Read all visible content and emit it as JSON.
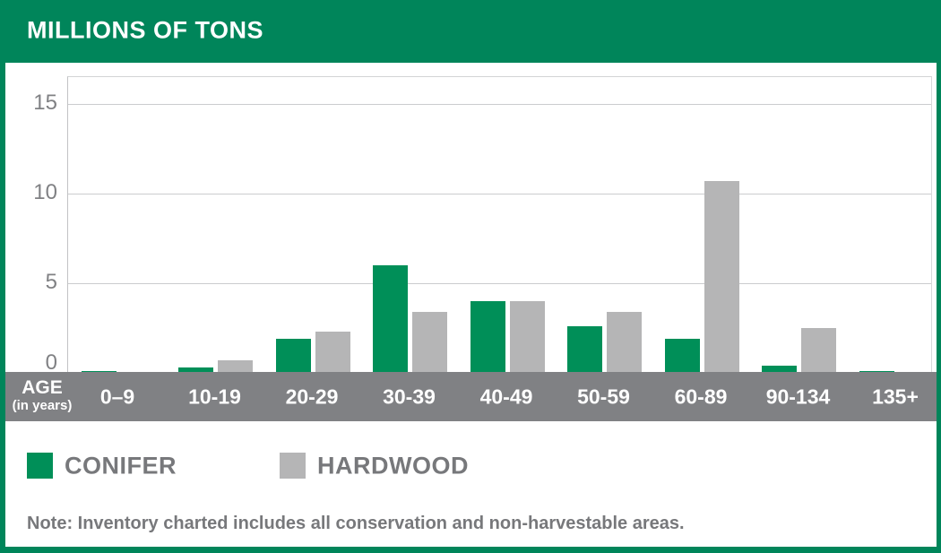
{
  "header": {
    "title": "MILLIONS OF TONS"
  },
  "colors": {
    "frame_green": "#00855A",
    "conifer_green": "#008F58",
    "hardwood_gray": "#B5B5B6",
    "band_gray": "#808184",
    "text_gray": "#77787B",
    "grid_gray": "#CBCCCE"
  },
  "y_axis": {
    "ticks": [
      15,
      10,
      5,
      0
    ]
  },
  "axis_band": {
    "title": "AGE",
    "subtitle": "(in years)"
  },
  "legend": {
    "items": [
      {
        "label": "CONIFER",
        "color": "#008F58"
      },
      {
        "label": "HARDWOOD",
        "color": "#B5B5B6"
      }
    ]
  },
  "note": "Note: Inventory charted includes all conservation and non-harvestable areas.",
  "chart_data": {
    "type": "bar",
    "title": "MILLIONS OF TONS",
    "xlabel": "AGE (in years)",
    "ylabel": "Millions of tons",
    "categories": [
      "0–9",
      "10-19",
      "20-29",
      "30-39",
      "40-49",
      "50-59",
      "60-89",
      "90-134",
      "135+"
    ],
    "series": [
      {
        "name": "CONIFER",
        "color": "#008F58",
        "values": [
          0.1,
          0.3,
          1.9,
          6.0,
          4.0,
          2.6,
          1.9,
          0.4,
          0.1
        ]
      },
      {
        "name": "HARDWOOD",
        "color": "#B5B5B6",
        "values": [
          0.05,
          0.7,
          2.3,
          3.4,
          4.0,
          3.4,
          10.7,
          2.5,
          0.05
        ]
      }
    ],
    "ylim": [
      0,
      16.5
    ],
    "yticks": [
      0,
      5,
      10,
      15
    ],
    "grid": true,
    "legend_position": "bottom",
    "footnote": "Note: Inventory charted includes all conservation and non-harvestable areas."
  }
}
